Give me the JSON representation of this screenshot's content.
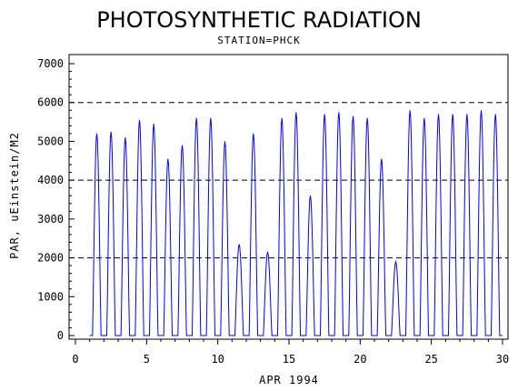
{
  "chart_data": {
    "type": "line",
    "title": "PHOTOSYNTHETIC RADIATION",
    "subtitle": "STATION=PHCK",
    "xlabel": "APR 1994",
    "ylabel": "PAR, uEinstein/M2",
    "xlim": [
      0,
      30
    ],
    "ylim": [
      0,
      7000
    ],
    "x_ticks": [
      0,
      5,
      10,
      15,
      20,
      25,
      30
    ],
    "y_ticks": [
      0,
      1000,
      2000,
      3000,
      4000,
      5000,
      6000,
      7000
    ],
    "reference_lines": [
      2000,
      4000,
      6000
    ],
    "grid": false,
    "colors": {
      "series": "#0000ff",
      "axis": "#000000"
    },
    "series": [
      {
        "daily_peaks": [
          {
            "day": 1,
            "peak": 5200
          },
          {
            "day": 2,
            "peak": 5250
          },
          {
            "day": 3,
            "peak": 5100
          },
          {
            "day": 4,
            "peak": 5550
          },
          {
            "day": 5,
            "peak": 5450
          },
          {
            "day": 6,
            "peak": 4550
          },
          {
            "day": 7,
            "peak": 4900
          },
          {
            "day": 8,
            "peak": 5600
          },
          {
            "day": 9,
            "peak": 5600
          },
          {
            "day": 10,
            "peak": 5000
          },
          {
            "day": 11,
            "peak": 2350
          },
          {
            "day": 12,
            "peak": 5200
          },
          {
            "day": 13,
            "peak": 2150
          },
          {
            "day": 14,
            "peak": 5600
          },
          {
            "day": 15,
            "peak": 5750
          },
          {
            "day": 16,
            "peak": 3600
          },
          {
            "day": 17,
            "peak": 5700
          },
          {
            "day": 18,
            "peak": 5750
          },
          {
            "day": 19,
            "peak": 5650
          },
          {
            "day": 20,
            "peak": 5600
          },
          {
            "day": 21,
            "peak": 4550
          },
          {
            "day": 22,
            "peak": 1900
          },
          {
            "day": 23,
            "peak": 5800
          },
          {
            "day": 24,
            "peak": 5600
          },
          {
            "day": 25,
            "peak": 5700
          },
          {
            "day": 26,
            "peak": 5700
          },
          {
            "day": 27,
            "peak": 5700
          },
          {
            "day": 28,
            "peak": 5800
          },
          {
            "day": 29,
            "peak": 5700
          }
        ]
      }
    ]
  }
}
